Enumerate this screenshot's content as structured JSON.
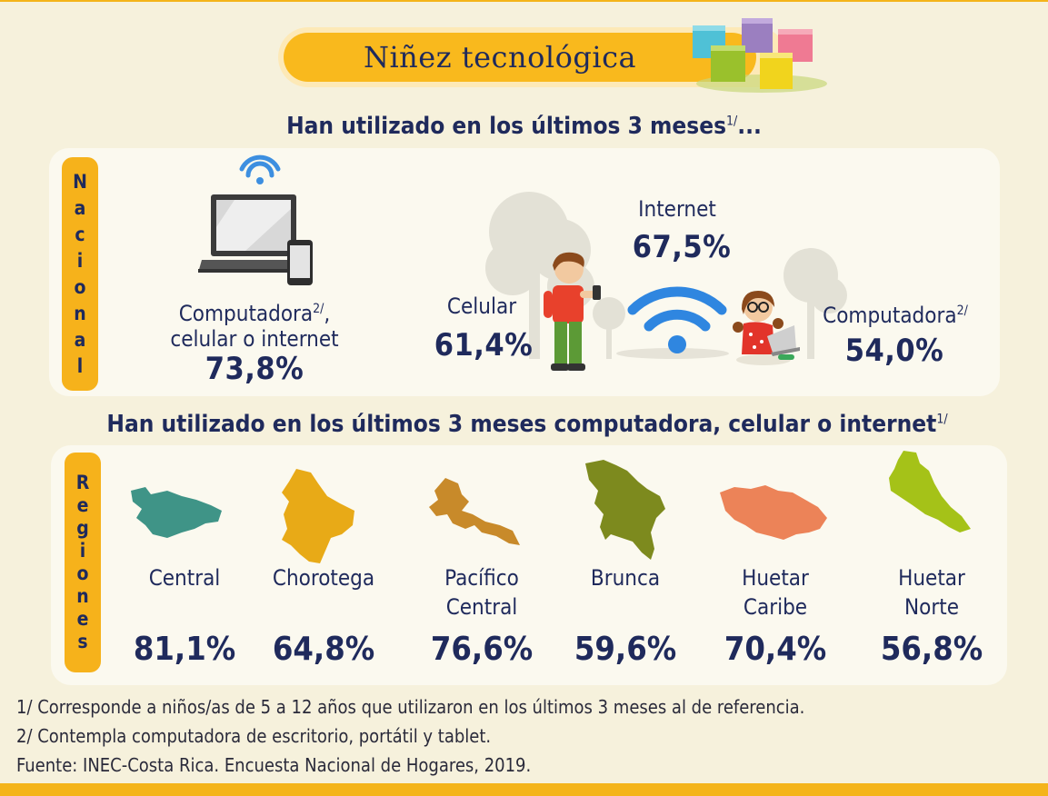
{
  "title": "Niñez tecnológica",
  "heading_nacional": "Han utilizado en los últimos 3 meses",
  "heading_nacional_sup": "1/",
  "heading_nacional_tail": "...",
  "heading_regiones": "Han utilizado en los últimos 3 meses computadora, celular o internet",
  "heading_regiones_sup": "1/",
  "tab_nacional": [
    "N",
    "a",
    "c",
    "i",
    "o",
    "n",
    "a",
    "l"
  ],
  "tab_regiones": [
    "R",
    "e",
    "g",
    "i",
    "o",
    "n",
    "e",
    "s"
  ],
  "nacional": {
    "combined_label_1": "Computadora",
    "combined_label_1_sup": "2/",
    "combined_label_1_tail": ",",
    "combined_label_2": "celular o internet",
    "combined_value": "73,8%",
    "celular_label": "Celular",
    "celular_value": "61,4%",
    "internet_label": "Internet",
    "internet_value": "67,5%",
    "computadora_label": "Computadora",
    "computadora_sup": "2/",
    "computadora_value": "54,0%"
  },
  "regions": [
    {
      "name_1": "Central",
      "name_2": "",
      "value": "81,1%",
      "color": "#3f9487"
    },
    {
      "name_1": "Chorotega",
      "name_2": "",
      "value": "64,8%",
      "color": "#e8aa17"
    },
    {
      "name_1": "Pacífico",
      "name_2": "Central",
      "value": "76,6%",
      "color": "#c88a2a"
    },
    {
      "name_1": "Brunca",
      "name_2": "",
      "value": "59,6%",
      "color": "#7d8a1e"
    },
    {
      "name_1": "Huetar",
      "name_2": "Caribe",
      "value": "70,4%",
      "color": "#ec8358"
    },
    {
      "name_1": "Huetar",
      "name_2": "Norte",
      "value": "56,8%",
      "color": "#a5c218"
    }
  ],
  "footnotes": [
    "1/ Corresponde a niños/as de 5 a 12 años que utilizaron en los últimos 3 meses al de referencia.",
    "2/ Contempla computadora de escritorio, portátil y tablet.",
    "Fuente: INEC-Costa Rica. Encuesta Nacional de Hogares, 2019."
  ],
  "icons": [
    "wifi-icon",
    "laptop-icon",
    "phone-icon",
    "boy-illustration",
    "girl-illustration",
    "trees-illustration",
    "blocks-illustration"
  ]
}
